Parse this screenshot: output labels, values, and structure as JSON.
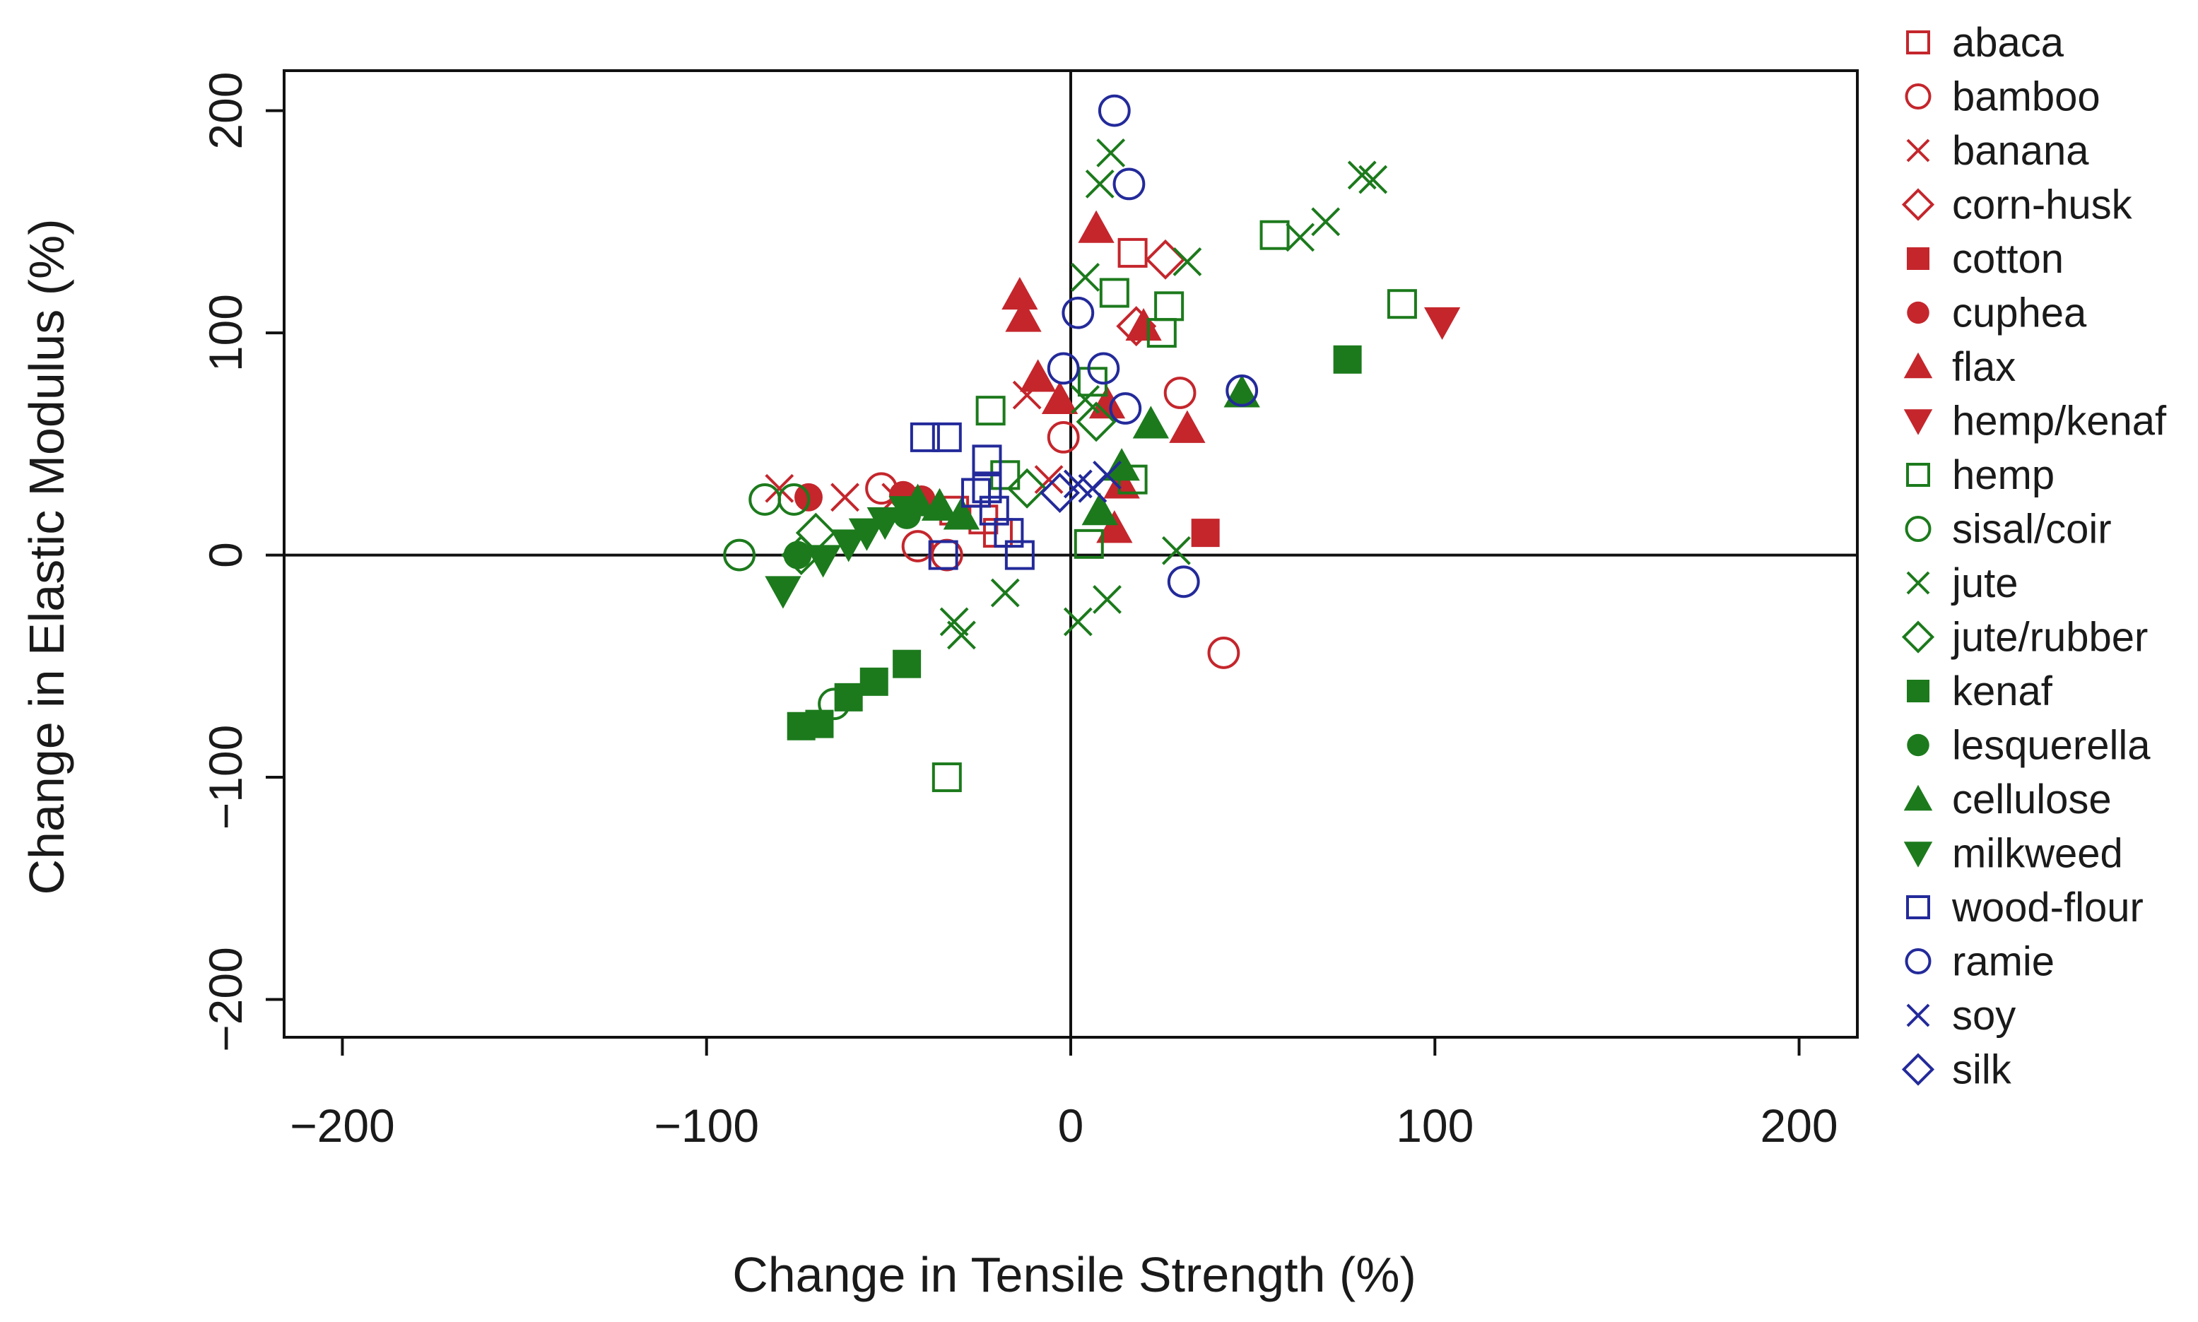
{
  "colors": {
    "red": "#c4262c",
    "green": "#1c7a1c",
    "blue": "#232a9a",
    "axis": "#111111"
  },
  "chart_data": {
    "type": "scatter",
    "xlabel": "Change in Tensile Strength (%)",
    "ylabel": "Change in Elastic Modulus (%)",
    "xlim": [
      -216,
      216
    ],
    "ylim": [
      -217,
      218
    ],
    "xticks": [
      -200,
      -100,
      0,
      100,
      200
    ],
    "yticks": [
      -200,
      -100,
      0,
      100,
      200
    ],
    "xtick_labels": [
      "−200",
      "−100",
      "0",
      "100",
      "200"
    ],
    "ytick_labels": [
      "−200",
      "−100",
      "0",
      "100",
      "200"
    ],
    "reference_lines": {
      "x": 0,
      "y": 0
    },
    "legend_position": "right",
    "series": [
      {
        "name": "abaca",
        "color": "red",
        "marker": "square-open",
        "points": [
          [
            -32,
            20
          ],
          [
            -24,
            16
          ],
          [
            -20,
            10
          ],
          [
            17,
            136
          ]
        ]
      },
      {
        "name": "bamboo",
        "color": "red",
        "marker": "circle-open",
        "points": [
          [
            -52,
            30
          ],
          [
            -42,
            4
          ],
          [
            -34,
            0
          ],
          [
            -2,
            53
          ],
          [
            30,
            73
          ],
          [
            42,
            -44
          ]
        ]
      },
      {
        "name": "banana",
        "color": "red",
        "marker": "x",
        "points": [
          [
            -80,
            30
          ],
          [
            -62,
            26
          ],
          [
            -48,
            26
          ],
          [
            -12,
            72
          ],
          [
            -6,
            34
          ]
        ]
      },
      {
        "name": "corn-husk",
        "color": "red",
        "marker": "diamond-open",
        "points": [
          [
            26,
            133
          ],
          [
            18,
            103
          ]
        ]
      },
      {
        "name": "cotton",
        "color": "red",
        "marker": "square-filled",
        "points": [
          [
            37,
            10
          ]
        ]
      },
      {
        "name": "cuphea",
        "color": "red",
        "marker": "circle-filled",
        "points": [
          [
            -72,
            26
          ],
          [
            -46,
            27
          ],
          [
            -41,
            25
          ]
        ]
      },
      {
        "name": "flax",
        "color": "red",
        "marker": "triangle-up-filled",
        "points": [
          [
            7,
            147
          ],
          [
            -14,
            117
          ],
          [
            -13,
            107
          ],
          [
            -9,
            80
          ],
          [
            -3,
            70
          ],
          [
            10,
            68
          ],
          [
            20,
            103
          ],
          [
            32,
            57
          ],
          [
            14,
            32
          ],
          [
            12,
            12
          ]
        ]
      },
      {
        "name": "hemp/kenaf",
        "color": "red",
        "marker": "triangle-down-filled",
        "points": [
          [
            102,
            105
          ]
        ]
      },
      {
        "name": "hemp",
        "color": "green",
        "marker": "square-open",
        "points": [
          [
            56,
            144
          ],
          [
            91,
            113
          ],
          [
            12,
            118
          ],
          [
            27,
            112
          ],
          [
            25,
            100
          ],
          [
            -22,
            65
          ],
          [
            -18,
            36
          ],
          [
            6,
            78
          ],
          [
            5,
            5
          ],
          [
            17,
            34
          ],
          [
            -34,
            -100
          ]
        ]
      },
      {
        "name": "sisal/coir",
        "color": "green",
        "marker": "circle-open",
        "points": [
          [
            -91,
            0
          ],
          [
            -84,
            25
          ],
          [
            -76,
            25
          ],
          [
            -65,
            -67
          ]
        ]
      },
      {
        "name": "jute",
        "color": "green",
        "marker": "x",
        "points": [
          [
            11,
            181
          ],
          [
            8,
            167
          ],
          [
            4,
            125
          ],
          [
            32,
            132
          ],
          [
            70,
            150
          ],
          [
            80,
            171
          ],
          [
            83,
            169
          ],
          [
            63,
            143
          ],
          [
            -18,
            -17
          ],
          [
            -32,
            -30
          ],
          [
            -30,
            -36
          ],
          [
            2,
            -30
          ],
          [
            10,
            -20
          ],
          [
            29,
            2
          ],
          [
            4,
            70
          ]
        ]
      },
      {
        "name": "jute/rubber",
        "color": "green",
        "marker": "diamond-open",
        "points": [
          [
            -74,
            0
          ],
          [
            -70,
            10
          ],
          [
            -12,
            30
          ],
          [
            7,
            60
          ]
        ]
      },
      {
        "name": "kenaf",
        "color": "green",
        "marker": "square-filled",
        "points": [
          [
            -74,
            -77
          ],
          [
            -69,
            -76
          ],
          [
            -61,
            -64
          ],
          [
            -54,
            -57
          ],
          [
            -45,
            -49
          ],
          [
            76,
            88
          ]
        ]
      },
      {
        "name": "lesquerella",
        "color": "green",
        "marker": "circle-filled",
        "points": [
          [
            -75,
            0
          ],
          [
            -45,
            18
          ]
        ]
      },
      {
        "name": "cellulose",
        "color": "green",
        "marker": "triangle-up-filled",
        "points": [
          [
            47,
            73
          ],
          [
            22,
            59
          ],
          [
            14,
            40
          ],
          [
            8,
            20
          ],
          [
            -42,
            24
          ],
          [
            -36,
            22
          ],
          [
            -30,
            18
          ]
        ]
      },
      {
        "name": "milkweed",
        "color": "green",
        "marker": "triangle-down-filled",
        "points": [
          [
            -79,
            -16
          ],
          [
            -68,
            -2
          ],
          [
            -61,
            5
          ],
          [
            -56,
            10
          ],
          [
            -51,
            15
          ],
          [
            -45,
            20
          ]
        ]
      },
      {
        "name": "wood-flour",
        "color": "blue",
        "marker": "square-open",
        "points": [
          [
            -40,
            53
          ],
          [
            -34,
            53
          ],
          [
            -26,
            28
          ],
          [
            -23,
            43
          ],
          [
            -23,
            30
          ],
          [
            -21,
            20
          ],
          [
            -17,
            10
          ],
          [
            -14,
            0
          ],
          [
            -35,
            0
          ]
        ]
      },
      {
        "name": "ramie",
        "color": "blue",
        "marker": "circle-open",
        "points": [
          [
            12,
            200
          ],
          [
            16,
            167
          ],
          [
            2,
            109
          ],
          [
            -2,
            84
          ],
          [
            9,
            84
          ],
          [
            15,
            66
          ],
          [
            47,
            74
          ],
          [
            31,
            -12
          ]
        ]
      },
      {
        "name": "soy",
        "color": "blue",
        "marker": "x",
        "points": [
          [
            2,
            32
          ],
          [
            10,
            36
          ],
          [
            6,
            30
          ]
        ]
      },
      {
        "name": "silk",
        "color": "blue",
        "marker": "diamond-open",
        "points": [
          [
            -3,
            28
          ]
        ]
      }
    ]
  }
}
